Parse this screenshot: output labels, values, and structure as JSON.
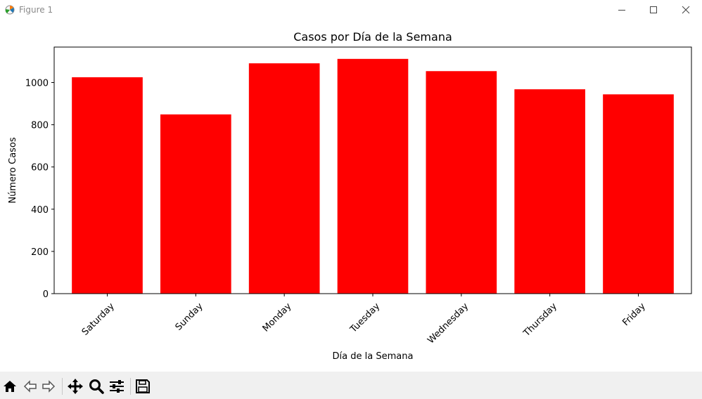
{
  "window": {
    "title": "Figure 1",
    "controls": [
      "minimize",
      "maximize",
      "close"
    ]
  },
  "toolbar": {
    "buttons": [
      "home-icon",
      "back-icon",
      "forward-icon",
      "pan-icon",
      "zoom-icon",
      "configure-subplots-icon",
      "save-icon"
    ]
  },
  "chart_data": {
    "type": "bar",
    "title": "Casos por Día de la Semana",
    "xlabel": "Día de la Semana",
    "ylabel": "Número Casos",
    "categories": [
      "Saturday",
      "Sunday",
      "Monday",
      "Tuesday",
      "Wednesday",
      "Thursday",
      "Friday"
    ],
    "values": [
      1025,
      849,
      1091,
      1112,
      1054,
      968,
      944
    ],
    "ylim": [
      0,
      1168
    ],
    "yticks": [
      0,
      200,
      400,
      600,
      800,
      1000
    ],
    "bar_color": "#ff0000",
    "grid": false,
    "xtick_rotation": 45
  }
}
